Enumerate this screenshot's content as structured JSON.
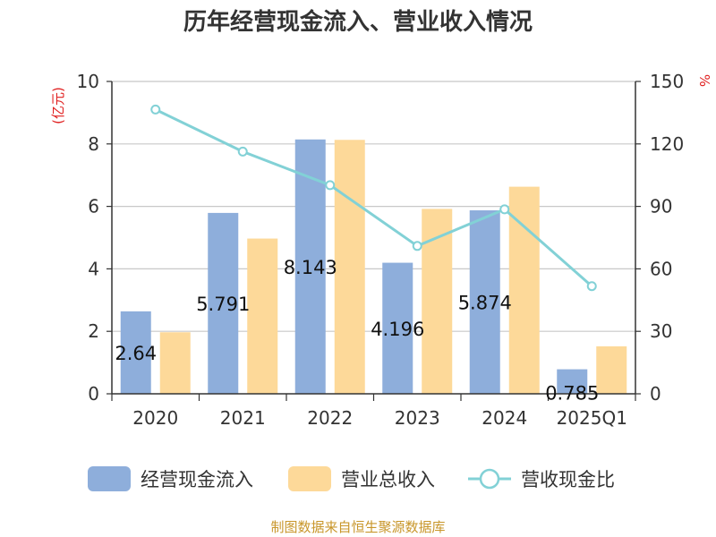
{
  "chart_data": {
    "type": "bar",
    "title": "历年经营现金流入、营业收入情况",
    "categories": [
      "2020",
      "2021",
      "2022",
      "2023",
      "2024",
      "2025Q1"
    ],
    "y_left_unit": "(亿元)",
    "y_right_unit": "%",
    "y_left_lim": [
      0,
      10
    ],
    "y_left_ticks": [
      0,
      2,
      4,
      6,
      8,
      10
    ],
    "y_right_lim": [
      0,
      150
    ],
    "y_right_ticks": [
      0,
      30,
      60,
      90,
      120,
      150
    ],
    "grid": true,
    "legend_position": "bottom",
    "series": [
      {
        "name": "经营现金流入",
        "type": "bar",
        "axis": "left",
        "color": "#8eaedb",
        "values": [
          2.64,
          5.791,
          8.143,
          4.196,
          5.874,
          0.785
        ],
        "labels": [
          "2.64",
          "5.791",
          "8.143",
          "4.196",
          "5.874",
          "0.785"
        ]
      },
      {
        "name": "营业总收入",
        "type": "bar",
        "axis": "left",
        "color": "#fdd999",
        "values": [
          1.97,
          4.97,
          8.13,
          5.92,
          6.63,
          1.52
        ]
      },
      {
        "name": "营收现金比",
        "type": "line",
        "axis": "right",
        "color": "#82d1d6",
        "values": [
          136.5,
          116.3,
          100.2,
          71.0,
          88.6,
          51.7
        ]
      }
    ]
  },
  "source": "制图数据来自恒生聚源数据库"
}
